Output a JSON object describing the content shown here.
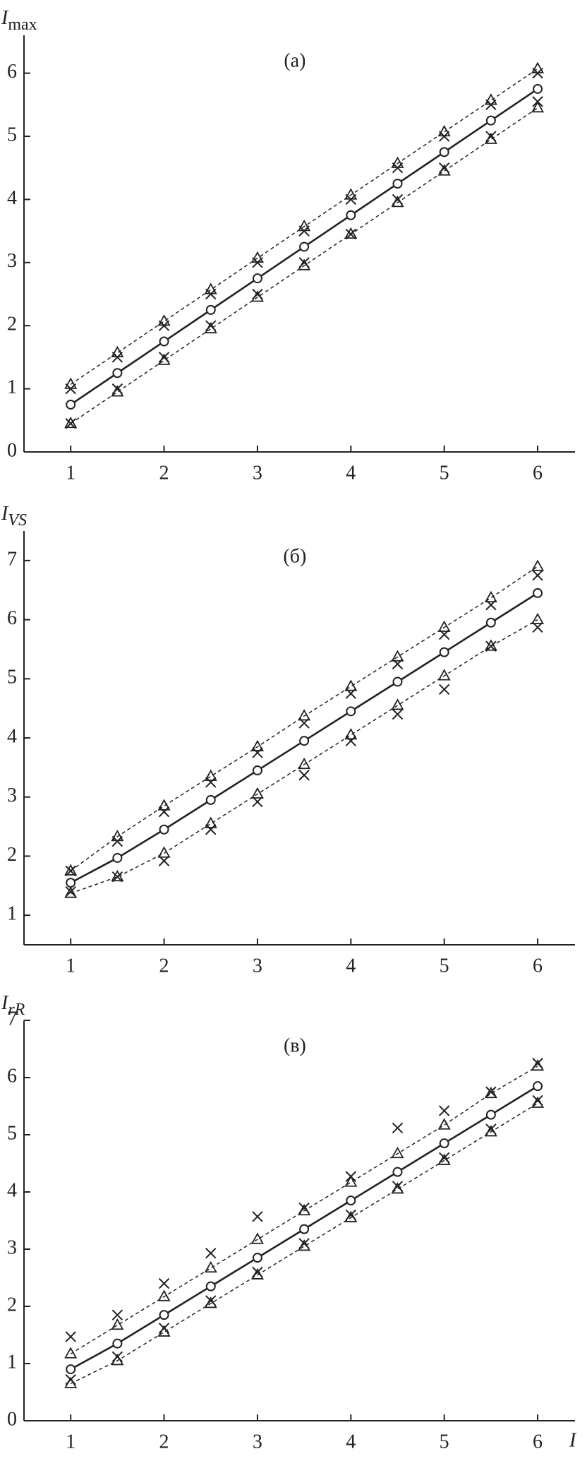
{
  "chart_data": [
    {
      "type": "line",
      "ylabel": "I",
      "ylabel_sub": "max",
      "annotation": "(а)",
      "x": [
        1,
        1.5,
        2,
        2.5,
        3,
        3.5,
        4,
        4.5,
        5,
        5.5,
        6
      ],
      "xlim": [
        0.5,
        6.4
      ],
      "xticks": [
        1,
        2,
        3,
        4,
        5,
        6
      ],
      "ylim": [
        0,
        6.6
      ],
      "yticks": [
        0,
        1,
        2,
        3,
        4,
        5,
        6
      ],
      "series": [
        {
          "color": "#222222",
          "line": "solid",
          "marker": "circle",
          "values": [
            0.75,
            1.25,
            1.75,
            2.25,
            2.75,
            3.25,
            3.75,
            4.25,
            4.75,
            5.25,
            5.75
          ]
        },
        {
          "color": "#222222",
          "line": "dashed",
          "marker": "triangle",
          "values": [
            1.07,
            1.57,
            2.07,
            2.57,
            3.07,
            3.57,
            4.07,
            4.57,
            5.07,
            5.57,
            6.07
          ]
        },
        {
          "color": "#222222",
          "line": "none",
          "marker": "cross",
          "values": [
            1.0,
            1.5,
            2.0,
            2.5,
            3.0,
            3.5,
            4.0,
            4.5,
            5.0,
            5.5,
            6.0
          ]
        },
        {
          "color": "#222222",
          "line": "dashed",
          "marker": "triangle",
          "values": [
            0.45,
            0.95,
            1.45,
            1.95,
            2.45,
            2.95,
            3.45,
            3.95,
            4.45,
            4.95,
            5.45
          ]
        },
        {
          "color": "#222222",
          "line": "none",
          "marker": "cross",
          "values": [
            0.45,
            1.0,
            1.5,
            2.0,
            2.5,
            3.0,
            3.45,
            4.0,
            4.5,
            5.0,
            5.55
          ]
        }
      ]
    },
    {
      "type": "line",
      "ylabel": "I",
      "ylabel_sub": "VS",
      "annotation": "(б)",
      "x": [
        1,
        1.5,
        2,
        2.5,
        3,
        3.5,
        4,
        4.5,
        5,
        5.5,
        6
      ],
      "xlim": [
        0.5,
        6.4
      ],
      "xticks": [
        1,
        2,
        3,
        4,
        5,
        6
      ],
      "ylim": [
        0.5,
        7.5
      ],
      "yticks": [
        1,
        2,
        3,
        4,
        5,
        6,
        7
      ],
      "series": [
        {
          "color": "#222222",
          "line": "solid",
          "marker": "circle",
          "values": [
            1.55,
            1.97,
            2.45,
            2.95,
            3.45,
            3.95,
            4.45,
            4.95,
            5.45,
            5.95,
            6.45
          ]
        },
        {
          "color": "#222222",
          "line": "dashed",
          "marker": "triangle",
          "values": [
            1.75,
            2.33,
            2.85,
            3.35,
            3.85,
            4.37,
            4.87,
            5.37,
            5.87,
            6.37,
            6.9
          ]
        },
        {
          "color": "#222222",
          "line": "none",
          "marker": "cross",
          "values": [
            1.75,
            2.25,
            2.75,
            3.25,
            3.75,
            4.25,
            4.75,
            5.25,
            5.75,
            6.25,
            6.75
          ]
        },
        {
          "color": "#222222",
          "line": "dashed",
          "marker": "triangle",
          "values": [
            1.37,
            1.65,
            2.05,
            2.55,
            3.05,
            3.55,
            4.05,
            4.55,
            5.05,
            5.55,
            6.0
          ]
        },
        {
          "color": "#222222",
          "line": "none",
          "marker": "cross",
          "values": [
            1.4,
            1.65,
            1.92,
            2.45,
            2.92,
            3.37,
            3.95,
            4.4,
            4.82,
            5.55,
            5.87
          ]
        }
      ]
    },
    {
      "type": "line",
      "ylabel": "I",
      "ylabel_sub": "rR",
      "annotation": "(в)",
      "xlabel": "I",
      "x": [
        1,
        1.5,
        2,
        2.5,
        3,
        3.5,
        4,
        4.5,
        5,
        5.5,
        6
      ],
      "xlim": [
        0.5,
        6.4
      ],
      "xticks": [
        1,
        2,
        3,
        4,
        5,
        6
      ],
      "ylim": [
        0,
        7
      ],
      "yticks": [
        0,
        1,
        2,
        3,
        4,
        5,
        6,
        7
      ],
      "series": [
        {
          "color": "#222222",
          "line": "solid",
          "marker": "circle",
          "values": [
            0.9,
            1.35,
            1.85,
            2.35,
            2.85,
            3.35,
            3.85,
            4.35,
            4.85,
            5.35,
            5.85
          ]
        },
        {
          "color": "#222222",
          "line": "dashed",
          "marker": "triangle",
          "values": [
            1.17,
            1.67,
            2.17,
            2.67,
            3.17,
            3.67,
            4.17,
            4.67,
            5.17,
            5.72,
            6.2
          ]
        },
        {
          "color": "#222222",
          "line": "none",
          "marker": "cross",
          "values": [
            1.47,
            1.85,
            2.4,
            2.93,
            3.57,
            3.72,
            4.27,
            5.12,
            5.42,
            5.75,
            6.25
          ]
        },
        {
          "color": "#222222",
          "line": "dashed",
          "marker": "triangle",
          "values": [
            0.65,
            1.05,
            1.55,
            2.05,
            2.55,
            3.05,
            3.55,
            4.05,
            4.55,
            5.05,
            5.55
          ]
        },
        {
          "color": "#222222",
          "line": "none",
          "marker": "cross",
          "values": [
            0.72,
            1.12,
            1.62,
            2.1,
            2.6,
            3.1,
            3.6,
            4.1,
            4.6,
            5.1,
            5.6
          ]
        }
      ]
    }
  ]
}
